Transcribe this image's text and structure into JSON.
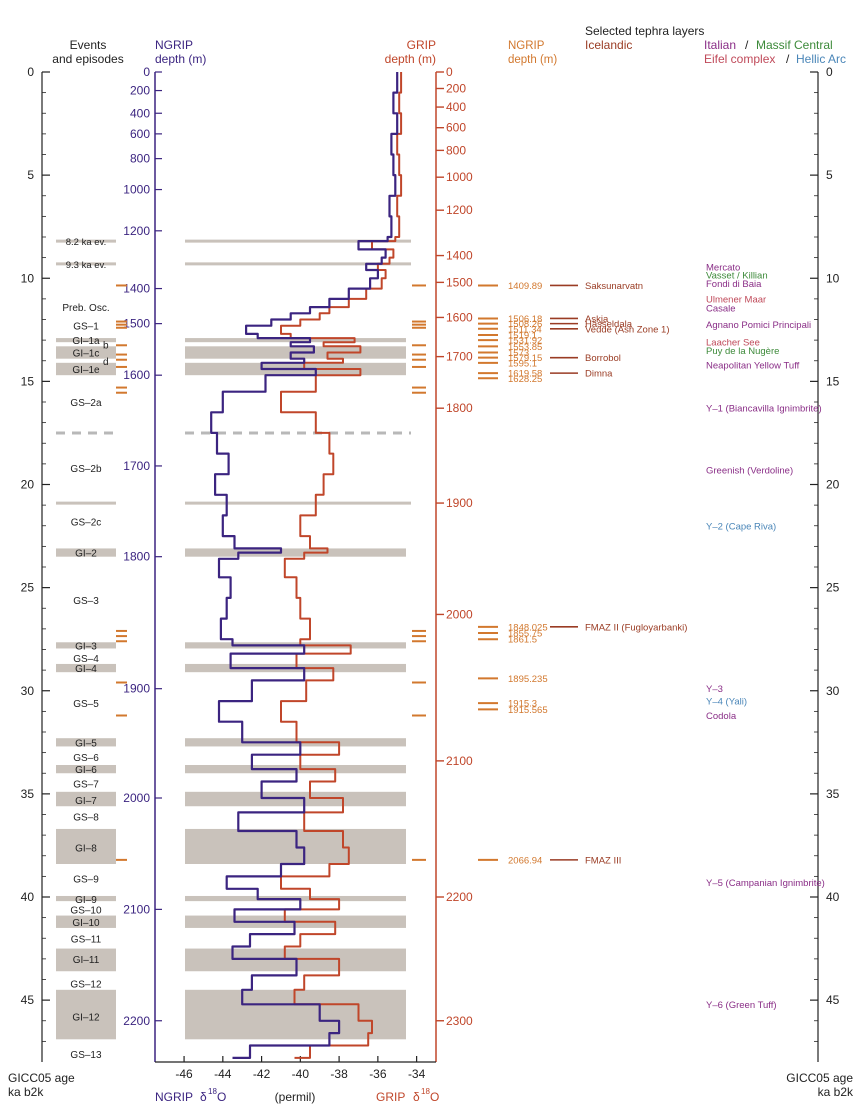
{
  "colors": {
    "ngrip": "#3b2480",
    "grip": "#c0462a",
    "orange": "#d2782e",
    "icelandic": "#9a3c24",
    "italian": "#8a2e87",
    "massif": "#3d8a3a",
    "eifel": "#c04a5a",
    "hellic": "#4a86b8",
    "band": "#c9c2bb",
    "dashed": "#b8b8b8"
  },
  "headers": {
    "events_line1": "Events",
    "events_line2": "and episodes",
    "ngrip_depth_line1": "NGRIP",
    "ngrip_depth_line2": "depth (m)",
    "grip_depth_line1": "GRIP",
    "grip_depth_line2": "depth (m)",
    "ngrip_tephra_line1": "NGRIP",
    "ngrip_tephra_line2": "depth (m)",
    "tephra_title": "Selected tephra layers",
    "icelandic": "Icelandic",
    "italian": "Italian",
    "slash1": "/",
    "massif": "Massif Central",
    "eifel": "Eifel complex",
    "slash2": "/",
    "hellic": "Hellic Arc"
  },
  "footers": {
    "age_left_1": "GICC05 age",
    "age_left_2": "ka b2k",
    "age_right_1": "GICC05 age",
    "age_right_2": "ka b2k",
    "ngrip_label": "NGRIP",
    "delta_left": "δ",
    "sup_left": "18",
    "o_left": "O",
    "permil": "(permil)",
    "grip_label": "GRIP",
    "delta_right": "δ",
    "sup_right": "18",
    "o_right": "O"
  },
  "chart_data": {
    "type": "line",
    "title": "",
    "age_axis": {
      "label": "GICC05 age ka b2k",
      "range": [
        0,
        48
      ],
      "ticks": [
        0,
        5,
        10,
        15,
        20,
        25,
        30,
        35,
        40,
        45
      ]
    },
    "d18o_axis": {
      "label": "δ18O (permil)",
      "range": [
        -47.5,
        -33
      ],
      "ticks": [
        -46,
        -44,
        -42,
        -40,
        -38,
        -36,
        -34
      ]
    },
    "ngrip_depth_axis": {
      "label": "NGRIP depth (m)",
      "ticks": [
        {
          "depth": 0,
          "age": 0
        },
        {
          "depth": 200,
          "age": 0.9
        },
        {
          "depth": 400,
          "age": 2.0
        },
        {
          "depth": 600,
          "age": 3.0
        },
        {
          "depth": 800,
          "age": 4.2
        },
        {
          "depth": 1000,
          "age": 5.7
        },
        {
          "depth": 1200,
          "age": 7.7
        },
        {
          "depth": 1400,
          "age": 10.5
        },
        {
          "depth": 1500,
          "age": 12.2
        },
        {
          "depth": 1600,
          "age": 14.7
        },
        {
          "depth": 1700,
          "age": 19.1
        },
        {
          "depth": 1800,
          "age": 23.5
        },
        {
          "depth": 1900,
          "age": 29.9
        },
        {
          "depth": 2000,
          "age": 35.2
        },
        {
          "depth": 2100,
          "age": 40.6
        },
        {
          "depth": 2200,
          "age": 46.0
        }
      ]
    },
    "grip_depth_axis": {
      "label": "GRIP depth (m)",
      "ticks": [
        {
          "depth": 0,
          "age": 0
        },
        {
          "depth": 200,
          "age": 0.8
        },
        {
          "depth": 400,
          "age": 1.7
        },
        {
          "depth": 600,
          "age": 2.7
        },
        {
          "depth": 800,
          "age": 3.8
        },
        {
          "depth": 1000,
          "age": 5.1
        },
        {
          "depth": 1200,
          "age": 6.7
        },
        {
          "depth": 1400,
          "age": 8.9
        },
        {
          "depth": 1500,
          "age": 10.2
        },
        {
          "depth": 1600,
          "age": 11.9
        },
        {
          "depth": 1700,
          "age": 13.8
        },
        {
          "depth": 1800,
          "age": 16.3
        },
        {
          "depth": 1900,
          "age": 20.9
        },
        {
          "depth": 2000,
          "age": 26.3
        },
        {
          "depth": 2100,
          "age": 33.4
        },
        {
          "depth": 2200,
          "age": 40.0
        },
        {
          "depth": 2300,
          "age": 46.0
        }
      ]
    },
    "events": [
      {
        "label": "8.2 ka ev.",
        "age": 8.2,
        "type": "event"
      },
      {
        "label": "9.3 ka ev.",
        "age": 9.3,
        "type": "event"
      },
      {
        "label": "Preb. Osc.",
        "age": 11.4,
        "type": "text"
      },
      {
        "label": "GS–1",
        "age": 12.3,
        "type": "text"
      },
      {
        "label": "GI–1a",
        "age": 13.0,
        "type": "gi"
      },
      {
        "label": "b",
        "age": 13.2,
        "type": "side"
      },
      {
        "label": "GI–1c",
        "age": 13.6,
        "type": "gi"
      },
      {
        "label": "d",
        "age": 14.0,
        "type": "side"
      },
      {
        "label": "GI–1e",
        "age": 14.4,
        "type": "gi"
      },
      {
        "label": "GS–2a",
        "age": 16.0,
        "type": "text"
      },
      {
        "label": "GS–2b",
        "age": 19.2,
        "type": "text"
      },
      {
        "label": "GS–2c",
        "age": 21.8,
        "type": "text"
      },
      {
        "label": "GI–2",
        "age": 23.3,
        "type": "gi"
      },
      {
        "label": "GS–3",
        "age": 25.6,
        "type": "text"
      },
      {
        "label": "GI–3",
        "age": 27.8,
        "type": "gi"
      },
      {
        "label": "GS–4",
        "age": 28.4,
        "type": "text"
      },
      {
        "label": "GI–4",
        "age": 28.9,
        "type": "gi"
      },
      {
        "label": "GS–5",
        "age": 30.6,
        "type": "text"
      },
      {
        "label": "GI–5",
        "age": 32.5,
        "type": "gi"
      },
      {
        "label": "GS–6",
        "age": 33.2,
        "type": "text"
      },
      {
        "label": "GI–6",
        "age": 33.8,
        "type": "gi"
      },
      {
        "label": "GS–7",
        "age": 34.5,
        "type": "text"
      },
      {
        "label": "GI–7",
        "age": 35.3,
        "type": "gi"
      },
      {
        "label": "GS–8",
        "age": 36.1,
        "type": "text"
      },
      {
        "label": "GI–8",
        "age": 37.6,
        "type": "gi"
      },
      {
        "label": "GS–9",
        "age": 39.1,
        "type": "text"
      },
      {
        "label": "GI–9",
        "age": 40.1,
        "type": "gi"
      },
      {
        "label": "GS–10",
        "age": 40.6,
        "type": "text"
      },
      {
        "label": "GI–10",
        "age": 41.2,
        "type": "gi"
      },
      {
        "label": "GS–11",
        "age": 42.0,
        "type": "text"
      },
      {
        "label": "GI–11",
        "age": 43.0,
        "type": "gi"
      },
      {
        "label": "GS–12",
        "age": 44.2,
        "type": "text"
      },
      {
        "label": "GI–12",
        "age": 45.8,
        "type": "gi"
      },
      {
        "label": "GS–13",
        "age": 47.6,
        "type": "text"
      }
    ],
    "interstadial_bands": [
      {
        "name": "GI-1a",
        "start": 12.9,
        "end": 13.1
      },
      {
        "name": "GI-1c",
        "start": 13.3,
        "end": 13.9
      },
      {
        "name": "GI-1e",
        "start": 14.1,
        "end": 14.7
      },
      {
        "name": "GI-2",
        "start": 23.1,
        "end": 23.5
      },
      {
        "name": "GI-3",
        "start": 27.65,
        "end": 27.95
      },
      {
        "name": "GI-4",
        "start": 28.7,
        "end": 29.1
      },
      {
        "name": "GI-5",
        "start": 32.3,
        "end": 32.7
      },
      {
        "name": "GI-6",
        "start": 33.6,
        "end": 34.0
      },
      {
        "name": "GI-7",
        "start": 34.9,
        "end": 35.6
      },
      {
        "name": "GI-8",
        "start": 36.7,
        "end": 38.4
      },
      {
        "name": "GI-9",
        "start": 39.95,
        "end": 40.2
      },
      {
        "name": "GI-10",
        "start": 40.9,
        "end": 41.5
      },
      {
        "name": "GI-11",
        "start": 42.5,
        "end": 43.6
      },
      {
        "name": "GI-12",
        "start": 44.5,
        "end": 46.9
      }
    ],
    "event_lines": [
      {
        "name": "8.2 ka ev.",
        "age": 8.2,
        "style": "solid"
      },
      {
        "name": "9.3 ka ev.",
        "age": 9.3,
        "style": "solid"
      },
      {
        "name": "GS-2a/b boundary",
        "age": 17.5,
        "style": "dashed"
      },
      {
        "name": "GS-2b/c boundary",
        "age": 20.9,
        "style": "solid"
      }
    ],
    "tephra_ticks_left": [
      10.35,
      12.1,
      12.25,
      12.4,
      13.25,
      13.7,
      13.95,
      14.3,
      15.3,
      15.55,
      27.1,
      27.35,
      27.6,
      29.6,
      31.2,
      38.2
    ],
    "tephra_ngrip": [
      {
        "label": "1409.89",
        "age": 10.35,
        "name": "Saksunarvatn",
        "group": "icelandic"
      },
      {
        "label": "1506.18",
        "age": 11.95,
        "name": "Askja",
        "group": "icelandic"
      },
      {
        "label": "1508.26",
        "age": 12.2,
        "name": "Hässeldala",
        "group": "icelandic"
      },
      {
        "label": "1511.34",
        "age": 12.45,
        "name": "Vedde (Ash Zone 1)",
        "group": "icelandic"
      },
      {
        "label": "1519.1",
        "age": 12.75,
        "name": "",
        "group": "icelandic"
      },
      {
        "label": "1531.92",
        "age": 13.0,
        "name": "",
        "group": "icelandic"
      },
      {
        "label": "1553.85",
        "age": 13.3,
        "name": "",
        "group": "icelandic"
      },
      {
        "label": "1573",
        "age": 13.6,
        "name": "",
        "group": "icelandic"
      },
      {
        "label": "1579.15",
        "age": 13.85,
        "name": "Borrobol",
        "group": "icelandic"
      },
      {
        "label": "1595.1",
        "age": 14.1,
        "name": "",
        "group": "icelandic"
      },
      {
        "label": "1619.58",
        "age": 14.6,
        "name": "Dimna",
        "group": "icelandic"
      },
      {
        "label": "1628.25",
        "age": 14.85,
        "name": "",
        "group": "icelandic"
      },
      {
        "label": "1848.025",
        "age": 26.9,
        "name": "FMAZ II (Fugloyarbanki)",
        "group": "icelandic"
      },
      {
        "label": "1855.75",
        "age": 27.2,
        "name": "",
        "group": "icelandic"
      },
      {
        "label": "1861.5",
        "age": 27.5,
        "name": "",
        "group": "icelandic"
      },
      {
        "label": "1895.235",
        "age": 29.4,
        "name": "",
        "group": "icelandic"
      },
      {
        "label": "1915.3",
        "age": 30.6,
        "name": "",
        "group": "icelandic"
      },
      {
        "label": "1915.565",
        "age": 30.9,
        "name": "",
        "group": "icelandic"
      },
      {
        "label": "2066.94",
        "age": 38.2,
        "name": "FMAZ III",
        "group": "icelandic"
      }
    ],
    "tephra_other": [
      {
        "label": "Mercato",
        "age": 9.45,
        "group": "italian"
      },
      {
        "label": "Vasset / Killian",
        "age": 9.85,
        "group": "massif"
      },
      {
        "label": "Fondi di Baia",
        "age": 10.25,
        "group": "italian"
      },
      {
        "label": "Ulmener Maar",
        "age": 11.0,
        "group": "eifel"
      },
      {
        "label": "Casale",
        "age": 11.45,
        "group": "italian"
      },
      {
        "label": "Agnano Pomici Principali",
        "age": 12.25,
        "group": "italian"
      },
      {
        "label": "Laacher See",
        "age": 13.1,
        "group": "eifel"
      },
      {
        "label": "Puy de la Nugère",
        "age": 13.5,
        "group": "massif"
      },
      {
        "label": "Neapolitan Yellow Tuff",
        "age": 14.2,
        "group": "italian"
      },
      {
        "label": "Y–1 (Biancavilla Ignimbrite)",
        "age": 16.3,
        "group": "italian"
      },
      {
        "label": "Greenish (Verdoline)",
        "age": 19.3,
        "group": "italian"
      },
      {
        "label": "Y–2 (Cape Riva)",
        "age": 22.0,
        "group": "hellic"
      },
      {
        "label": "Y–3",
        "age": 29.9,
        "group": "italian"
      },
      {
        "label": "Y–4 (Yali)",
        "age": 30.5,
        "group": "hellic"
      },
      {
        "label": "Codola",
        "age": 31.2,
        "group": "italian"
      },
      {
        "label": "Y–5 (Campanian Ignimbrite)",
        "age": 39.3,
        "group": "italian"
      },
      {
        "label": "Y–6 (Green Tuff)",
        "age": 45.2,
        "group": "italian"
      }
    ],
    "series": [
      {
        "name": "NGRIP",
        "age": [
          0,
          1,
          2,
          3,
          4,
          5,
          6,
          7,
          8,
          8.2,
          8.6,
          9,
          9.3,
          9.6,
          10,
          10.5,
          11,
          11.4,
          11.7,
          12,
          12.3,
          12.7,
          12.9,
          13.1,
          13.3,
          13.6,
          13.9,
          14.1,
          14.4,
          14.7,
          15.5,
          16.5,
          17.5,
          18.5,
          19.5,
          20.5,
          21.5,
          22.5,
          23.1,
          23.3,
          23.6,
          24.5,
          25.5,
          26.5,
          27.5,
          27.8,
          28.2,
          28.9,
          29.5,
          30.5,
          31.5,
          32.5,
          33.1,
          33.8,
          34.4,
          35.2,
          35.9,
          36.8,
          37.6,
          38.4,
          39,
          39.6,
          40.1,
          40.6,
          41.2,
          41.8,
          42.4,
          43,
          43.8,
          44.5,
          45.2,
          46,
          46.6,
          47.2,
          47.8
        ],
        "d18o": [
          -35.0,
          -35.2,
          -35.0,
          -35.3,
          -35.2,
          -35.1,
          -35.4,
          -35.3,
          -35.5,
          -37.0,
          -35.6,
          -35.8,
          -36.6,
          -36.0,
          -36.4,
          -37.5,
          -38.5,
          -39.5,
          -40.5,
          -41.5,
          -42.8,
          -42.2,
          -39.5,
          -40.5,
          -39.3,
          -40.5,
          -39.8,
          -42.0,
          -39.2,
          -41.8,
          -44.0,
          -44.6,
          -44.3,
          -43.7,
          -44.4,
          -43.8,
          -44.0,
          -43.4,
          -41.0,
          -43.2,
          -44.2,
          -43.6,
          -43.8,
          -44.1,
          -43.5,
          -39.8,
          -43.6,
          -39.8,
          -42.5,
          -44.2,
          -43.0,
          -40.0,
          -42.5,
          -40.2,
          -42.0,
          -39.8,
          -43.2,
          -40.2,
          -39.8,
          -41.0,
          -43.8,
          -42.2,
          -40.0,
          -43.4,
          -40.3,
          -42.6,
          -43.5,
          -40.2,
          -42.5,
          -43.0,
          -39.0,
          -38.0,
          -38.5,
          -42.6,
          -43.5
        ]
      },
      {
        "name": "GRIP",
        "age": [
          0,
          1,
          2,
          3,
          4,
          5,
          6,
          7,
          8,
          8.2,
          8.6,
          9,
          9.3,
          9.6,
          10,
          10.5,
          11,
          11.4,
          11.7,
          12,
          12.3,
          12.7,
          12.9,
          13.1,
          13.3,
          13.6,
          13.9,
          14.1,
          14.4,
          14.7,
          15.5,
          16.5,
          17.5,
          18.5,
          19.5,
          20.5,
          21.5,
          22.5,
          23.1,
          23.3,
          23.6,
          24.5,
          25.5,
          26.5,
          27.5,
          27.8,
          28.2,
          28.9,
          29.5,
          30.5,
          31.5,
          32.5,
          33.1,
          33.8,
          34.4,
          35.2,
          35.9,
          36.8,
          37.6,
          38.4,
          39,
          39.6,
          40.1,
          40.6,
          41.2,
          41.8,
          42.4,
          43,
          43.8,
          44.5,
          45.2,
          46,
          46.6,
          47.2,
          47.8
        ],
        "d18o": [
          -34.8,
          -34.9,
          -34.8,
          -35.0,
          -34.9,
          -34.8,
          -35.0,
          -34.9,
          -35.1,
          -36.3,
          -35.2,
          -35.4,
          -36.0,
          -35.6,
          -35.8,
          -36.6,
          -37.5,
          -38.5,
          -39.0,
          -40.0,
          -41.0,
          -40.5,
          -37.2,
          -38.8,
          -36.9,
          -38.6,
          -37.8,
          -39.8,
          -36.9,
          -39.2,
          -41.0,
          -39.2,
          -38.5,
          -38.3,
          -38.8,
          -39.2,
          -40.0,
          -39.5,
          -38.6,
          -39.8,
          -40.8,
          -40.2,
          -40.0,
          -39.5,
          -40.0,
          -37.4,
          -40.2,
          -38.3,
          -39.7,
          -41.0,
          -40.2,
          -38.0,
          -40.0,
          -38.2,
          -39.5,
          -37.8,
          -39.8,
          -37.8,
          -37.5,
          -38.5,
          -41.0,
          -39.5,
          -38.0,
          -40.8,
          -38.2,
          -40.0,
          -40.8,
          -38.0,
          -39.8,
          -40.3,
          -37.0,
          -36.3,
          -36.5,
          -39.5,
          -40.3
        ]
      }
    ]
  }
}
